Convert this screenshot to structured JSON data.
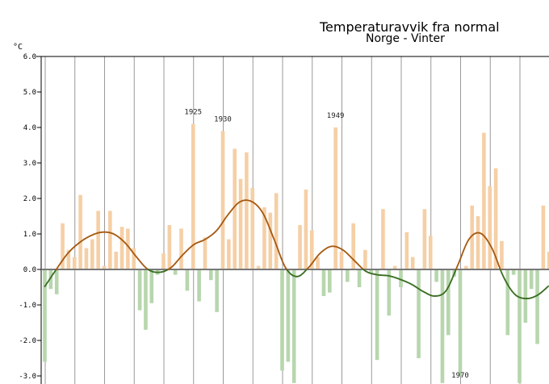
{
  "chart_data": {
    "type": "bar",
    "title": "Temperaturavvik fra normal",
    "subtitle": "Norge - Vinter",
    "ylabel": "°C",
    "ylim": [
      -3.2,
      6.0
    ],
    "yticks": [
      "6.0",
      "5.0",
      "4.0",
      "3.0",
      "2.0",
      "1.0",
      "0.0",
      "-1.0",
      "-2.0",
      "-3.0"
    ],
    "grid": "vertical",
    "colors": {
      "positive": "#f5cfa6",
      "negative": "#b7d6ad",
      "smooth_above": "#a55a12",
      "smooth_below": "#3b6e23",
      "zero_line": "#777777"
    },
    "x_start": 1900,
    "values": [
      -2.6,
      -0.55,
      -0.7,
      1.3,
      0.55,
      0.35,
      2.1,
      0.6,
      0.85,
      1.65,
      0.1,
      1.65,
      0.5,
      1.2,
      1.15,
      0.6,
      -1.15,
      -1.7,
      -0.95,
      -0.15,
      0.45,
      1.25,
      -0.15,
      1.15,
      -0.6,
      4.1,
      -0.9,
      0.9,
      -0.3,
      -1.2,
      3.9,
      0.85,
      3.4,
      2.55,
      3.3,
      2.3,
      0.1,
      1.75,
      1.6,
      2.15,
      -2.85,
      -2.6,
      -3.2,
      1.25,
      2.25,
      1.1,
      0.35,
      -0.75,
      -0.65,
      4.0,
      0.5,
      -0.35,
      1.3,
      -0.5,
      0.55,
      -0.1,
      -2.55,
      1.7,
      -1.3,
      0.1,
      -0.5,
      1.05,
      0.35,
      -2.5,
      1.7,
      0.95,
      -0.35,
      -3.2,
      -1.85,
      -0.2,
      -3.0,
      0.1,
      1.8,
      1.5,
      3.85,
      2.35,
      2.85,
      0.8,
      -1.85,
      -0.15,
      -3.2,
      -1.5,
      -0.55,
      -2.1,
      1.8,
      0.5
    ],
    "smoothed": [
      -0.48,
      0.0,
      0.45,
      0.75,
      0.95,
      1.05,
      1.0,
      0.75,
      0.35,
      0.0,
      -0.08,
      0.05,
      0.4,
      0.7,
      0.85,
      1.1,
      1.55,
      1.9,
      1.92,
      1.6,
      0.85,
      0.05,
      -0.2,
      0.05,
      0.45,
      0.65,
      0.55,
      0.25,
      -0.05,
      -0.15,
      -0.18,
      -0.28,
      -0.42,
      -0.62,
      -0.75,
      -0.6,
      0.1,
      0.85,
      1.02,
      0.6,
      -0.2,
      -0.7,
      -0.82,
      -0.72,
      -0.45
    ],
    "annotations": [
      {
        "label": "1925",
        "year": 1925
      },
      {
        "label": "1930",
        "year": 1930
      },
      {
        "label": "1949",
        "year": 1949
      },
      {
        "label": "1970",
        "year": 1970
      }
    ]
  }
}
